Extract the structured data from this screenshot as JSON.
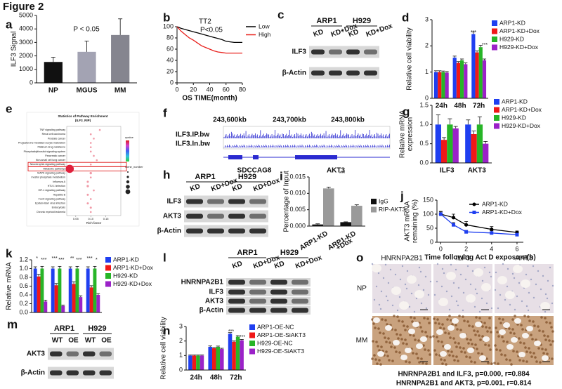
{
  "title": "Figure 2",
  "chart_data": [
    {
      "letter": "a",
      "type": "bar",
      "ylabel": "ILF3 Signal",
      "categories": [
        "NP",
        "MGUS",
        "MM"
      ],
      "values": [
        1550,
        2300,
        3550
      ],
      "errors": [
        350,
        800,
        1200
      ],
      "colors": [
        "#111111",
        "#a3a3b3",
        "#85858f"
      ],
      "ylim": [
        0,
        5000
      ],
      "yticks": [
        0,
        1000,
        2000,
        3000,
        4000,
        5000
      ],
      "annotations": [
        "P < 0.05"
      ]
    },
    {
      "letter": "b",
      "type": "line",
      "title": "TT2",
      "annotations": [
        "P<0.05"
      ],
      "xlabel": "OS TIME(month)",
      "x": [
        0,
        5,
        10,
        15,
        20,
        25,
        30,
        35,
        40,
        45,
        50,
        55,
        60,
        65,
        70,
        75,
        80
      ],
      "series": [
        {
          "name": "Low",
          "color": "#000000",
          "values": [
            100,
            97,
            95,
            93,
            91,
            89,
            87,
            85,
            83,
            81,
            79,
            77,
            74,
            73,
            72,
            72,
            72
          ]
        },
        {
          "name": "High",
          "color": "#e8201c",
          "values": [
            100,
            92,
            86,
            80,
            76,
            71,
            66,
            63,
            60,
            57,
            55,
            54,
            53,
            53,
            53,
            53,
            53
          ]
        }
      ],
      "xlim": [
        0,
        80
      ],
      "xticks": [
        0,
        20,
        40,
        60,
        80
      ],
      "ylim": [
        0,
        100
      ],
      "yticks": [
        0,
        20,
        40,
        60,
        80,
        100
      ]
    },
    {
      "letter": "d",
      "type": "grouped_bar",
      "ylabel": "Relative cell viability",
      "categories": [
        "24h",
        "48h",
        "72h"
      ],
      "series": [
        {
          "name": "ARP1-KD",
          "color": "#1f3ff0",
          "values": [
            1.0,
            1.55,
            2.45
          ],
          "errors": [
            0.05,
            0.06,
            0.08
          ]
        },
        {
          "name": "ARP1-KD+Dox",
          "color": "#f01818",
          "values": [
            1.0,
            1.35,
            1.75
          ],
          "errors": [
            0.05,
            0.05,
            0.06
          ]
        },
        {
          "name": "H929-KD",
          "color": "#27b527",
          "values": [
            1.0,
            1.45,
            1.95
          ],
          "errors": [
            0.04,
            0.05,
            0.07
          ]
        },
        {
          "name": "H929-KD+Dox",
          "color": "#9b22c8",
          "values": [
            0.98,
            1.3,
            1.45
          ],
          "errors": [
            0.04,
            0.05,
            0.05
          ]
        }
      ],
      "ylim": [
        0,
        3
      ],
      "yticks": [
        0,
        1,
        2,
        3
      ],
      "annotations": [
        "***",
        "***"
      ]
    },
    {
      "letter": "g",
      "type": "grouped_bar",
      "ylabel": [
        "Relative mRNA",
        "expression"
      ],
      "categories": [
        "ILF3",
        "AKT3"
      ],
      "series": [
        {
          "name": "ARP1-KD",
          "color": "#1f3ff0",
          "values": [
            1.0,
            1.0
          ],
          "errors": [
            0.25,
            0.12
          ]
        },
        {
          "name": "ARP1-KD+Dox",
          "color": "#f01818",
          "values": [
            0.6,
            0.75
          ],
          "errors": [
            0.06,
            0.08
          ]
        },
        {
          "name": "H929-KD",
          "color": "#27b527",
          "values": [
            1.0,
            1.0
          ],
          "errors": [
            0.15,
            0.2
          ]
        },
        {
          "name": "H929-KD+Dox",
          "color": "#9b22c8",
          "values": [
            0.9,
            0.5
          ],
          "errors": [
            0.05,
            0.06
          ]
        }
      ],
      "ylim": [
        0,
        1.5
      ],
      "yticks": [
        {
          "value": 0,
          "label": "0.0"
        },
        0.5,
        {
          "value": 1,
          "label": "1.0"
        },
        1.5
      ],
      "annotations": [
        "*"
      ]
    },
    {
      "letter": "i",
      "type": "grouped_bar",
      "ylabel": "Percentage of Input",
      "categories": [
        "ARP1-KD",
        [
          "ARP1-KD",
          "+Dox"
        ]
      ],
      "series": [
        {
          "name": "IgG",
          "color": "#111111",
          "values": [
            0.0005,
            0.0012
          ],
          "errors": [
            0.0002,
            0.0001
          ]
        },
        {
          "name": "RIP-AKT3",
          "color": "#9a9a9a",
          "values": [
            0.0115,
            0.0062
          ],
          "errors": [
            0.0004,
            0.0003
          ]
        }
      ],
      "ylim": [
        0,
        0.015
      ],
      "yticks": [
        {
          "value": 0,
          "label": "0.000"
        },
        0.005,
        {
          "value": 0.01,
          "label": "0.010"
        },
        0.015
      ],
      "annotations": [
        "***"
      ]
    },
    {
      "letter": "j",
      "type": "line",
      "ylabel": [
        "AKT3 mRNA",
        "remaining (%)"
      ],
      "xlabel": "Time following Act D exposure(h)",
      "x": [
        0,
        1,
        2,
        4,
        6
      ],
      "series": [
        {
          "name": "ARP1-KD",
          "color": "#000000",
          "marker": "circle",
          "values": [
            100,
            88,
            62,
            46,
            35
          ],
          "errors": [
            10,
            12,
            12,
            10,
            5
          ]
        },
        {
          "name": "ARP1-KD+Dox",
          "color": "#1f3ff0",
          "marker": "square",
          "values": [
            100,
            62,
            37,
            33,
            27
          ],
          "errors": [
            8,
            8,
            5,
            8,
            4
          ]
        }
      ],
      "xlim": [
        -0.3,
        6.5
      ],
      "xticks": [
        0,
        2,
        4,
        6
      ],
      "ylim": [
        0,
        150
      ],
      "yticks": [
        0,
        50,
        100,
        150
      ]
    },
    {
      "letter": "k",
      "type": "grouped_bar",
      "ylabel": "Relative mRNA",
      "categories": [
        null,
        null,
        null,
        null
      ],
      "series": [
        {
          "name": "ARP1-KD",
          "color": "#1f3ff0",
          "values": [
            1.0,
            1.0,
            1.0,
            1.0
          ],
          "errors": [
            0.04,
            0.04,
            0.04,
            0.04
          ]
        },
        {
          "name": "ARP1-KD+Dox",
          "color": "#f01818",
          "values": [
            0.82,
            0.62,
            0.65,
            0.57
          ],
          "errors": [
            0.05,
            0.04,
            0.05,
            0.04
          ]
        },
        {
          "name": "H929-KD",
          "color": "#27b527",
          "values": [
            1.0,
            1.0,
            1.0,
            1.0
          ],
          "errors": [
            0.05,
            0.05,
            0.05,
            0.05
          ]
        },
        {
          "name": "H929-KD+Dox",
          "color": "#9b22c8",
          "values": [
            0.25,
            0.15,
            0.35,
            0.4
          ],
          "errors": [
            0.03,
            0.02,
            0.03,
            0.03
          ]
        }
      ],
      "ylim": [
        0,
        1.2
      ],
      "yticks": [
        {
          "value": 0,
          "label": "0.0"
        },
        0.2,
        0.4,
        0.6,
        0.8,
        {
          "value": 1,
          "label": "1.0"
        },
        1.2
      ],
      "annotations": [
        "*",
        "***",
        "***",
        "***",
        "**",
        "***",
        "***",
        "*"
      ]
    },
    {
      "letter": "n",
      "type": "grouped_bar",
      "ylabel": "Relative cell viability",
      "categories": [
        "24h",
        "48h",
        "72h"
      ],
      "series": [
        {
          "name": "ARP1-OE-NC",
          "color": "#1f3ff0",
          "values": [
            1.0,
            1.6,
            2.5
          ],
          "errors": [
            0.04,
            0.06,
            0.08
          ]
        },
        {
          "name": "ARP1-OE-SiAKT3",
          "color": "#f01818",
          "values": [
            1.0,
            1.5,
            1.95
          ],
          "errors": [
            0.04,
            0.05,
            0.06
          ]
        },
        {
          "name": "H929-OE-NC",
          "color": "#27b527",
          "values": [
            1.0,
            1.6,
            2.3
          ],
          "errors": [
            0.04,
            0.05,
            0.07
          ]
        },
        {
          "name": "H929-OE-SiAKT3",
          "color": "#9b22c8",
          "values": [
            1.0,
            1.45,
            2.05
          ],
          "errors": [
            0.04,
            0.05,
            0.06
          ]
        }
      ],
      "ylim": [
        0,
        3
      ],
      "yticks": [
        0,
        1,
        2,
        3
      ],
      "annotations": [
        "***",
        "***"
      ]
    },
    {
      "letter": "e",
      "type": "scatter",
      "title": "Statistics of Pathway Enrichment",
      "subtitle": "(ILF3_RIP)",
      "xlabel": "Rich factor",
      "categories": [
        "TNF signaling pathway",
        "Renal cell carcinoma",
        "Prostate cancer",
        "Progesterone-mediated oocyte maturation",
        "Platinum drug resistance",
        "Phosphatidylinositol signaling system",
        "Pancreatic cancer",
        "Non-small cell lung cancer",
        "Neurotrophin signaling pathway",
        "Metabolic pathways",
        "MAPK signaling pathway",
        "Inositol phosphate metabolism",
        "Influenza A",
        "HTLV-I infection",
        "HIF-1 signaling pathway",
        "Hepatitis B",
        "FoxO signaling pathway",
        "Epstein-Barr virus infection",
        "Endocytosis",
        "Chronic myeloid leukemia"
      ],
      "x": [
        0.13,
        0.1,
        0.11,
        0.1,
        0.1,
        0.1,
        0.11,
        0.12,
        0.1,
        0.03,
        0.1,
        0.1,
        0.09,
        0.09,
        0.11,
        0.09,
        0.1,
        0.09,
        0.1,
        0.1
      ],
      "sizes": [
        3,
        3,
        3,
        3,
        3,
        3,
        3,
        3,
        3,
        60,
        5,
        3,
        4,
        5,
        3,
        4,
        3,
        4,
        4,
        3
      ],
      "color": "#e0203c",
      "highlight": [
        8,
        9
      ],
      "legend_titles": [
        "qvalue",
        "Gene_number"
      ],
      "xlim": [
        0.02,
        0.2
      ],
      "xticks": [
        0.05,
        {
          "value": 0.1,
          "label": "0.10"
        },
        0.15
      ]
    }
  ],
  "blots": [
    {
      "letter": "c",
      "groups": [
        "ARP1",
        "H929"
      ],
      "lanes": [
        "KD",
        "KD+Dox",
        "KD",
        "KD+Dox"
      ],
      "rows": [
        "ILF3",
        "β-Actin"
      ]
    },
    {
      "letter": "h",
      "groups": [
        "ARP1",
        "H929"
      ],
      "lanes": [
        "KD",
        "KD+Dox",
        "KD",
        "KD+Dox"
      ],
      "rows": [
        "ILF3",
        "AKT3",
        "β-Actin"
      ]
    },
    {
      "letter": "l",
      "groups": [
        "ARP1",
        "H929"
      ],
      "lanes": [
        "KD",
        "KD+Dox",
        "KD",
        "KD+Dox"
      ],
      "rows": [
        "HNRNPA2B1",
        "ILF3",
        "AKT3",
        "β-Actin"
      ]
    },
    {
      "letter": "m",
      "groups": [
        "ARP1",
        "H929"
      ],
      "lanes": [
        "WT",
        "OE",
        "WT",
        "OE"
      ],
      "rows": [
        "AKT3",
        "β-Actin"
      ]
    }
  ],
  "tracks": {
    "letter": "f",
    "coordinates": [
      "243,600kb",
      "243,700kb",
      "243,800kb"
    ],
    "tracks": [
      "ILF3.IP.bw",
      "ILF3.In.bw"
    ],
    "genes": [
      "SDCCAG8",
      "AKT3"
    ]
  },
  "ihc": {
    "letter": "o",
    "columns": [
      "HNRNPA2B1",
      "ILF3",
      "AKT3"
    ],
    "rows": [
      "NP",
      "MM"
    ],
    "caption": [
      "HNRNPA2B1 and ILF3, p=0.000, r=0.884",
      "HNRNPA2B1 and AKT3, p=0.001, r=0.814"
    ]
  }
}
